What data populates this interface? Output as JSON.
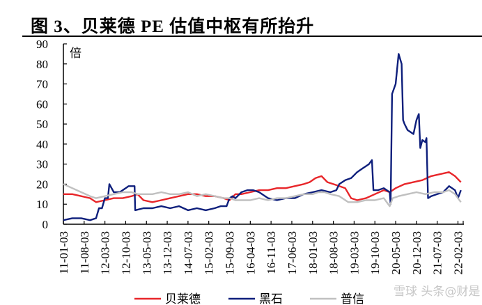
{
  "title": "图 3、贝莱德 PE 估值中枢有所抬升",
  "watermark": "雪球 头条@财是",
  "chart_data": {
    "type": "line",
    "title": "图 3、贝莱德 PE 估值中枢有所抬升",
    "ylabel": "倍",
    "xlabel": "",
    "ylim": [
      0,
      90
    ],
    "yticks": [
      0,
      10,
      20,
      30,
      40,
      50,
      60,
      70,
      80,
      90
    ],
    "x_unit": "months since 2011-01",
    "xlim": [
      0,
      135
    ],
    "xtick_labels": [
      "11-01-03",
      "11-08-03",
      "12-03-03",
      "12-10-03",
      "13-05-03",
      "13-12-03",
      "14-07-03",
      "15-02-03",
      "15-09-03",
      "16-04-03",
      "16-11-03",
      "17-06-03",
      "18-01-03",
      "18-08-03",
      "19-03-03",
      "19-10-03",
      "20-05-03",
      "20-12-03",
      "21-07-03",
      "22-02-03"
    ],
    "legend_position": "bottom",
    "series": [
      {
        "name": "贝莱德",
        "color": "#e8262a",
        "x": [
          0,
          3,
          6,
          9,
          11,
          14,
          17,
          20,
          23,
          25,
          27,
          30,
          33,
          36,
          39,
          42,
          45,
          48,
          51,
          54,
          56,
          58,
          60,
          63,
          66,
          69,
          72,
          75,
          78,
          81,
          83,
          85,
          87,
          89,
          91,
          93,
          95,
          97,
          99,
          102,
          105,
          108,
          110,
          112,
          115,
          118,
          121,
          124,
          127,
          130,
          132,
          134
        ],
        "y": [
          15,
          15,
          14,
          13,
          11,
          12,
          13,
          13,
          14,
          15,
          12,
          11,
          12,
          13,
          14,
          15,
          15,
          14,
          14,
          13,
          12,
          15,
          15,
          16,
          17,
          17,
          18,
          18,
          19,
          20,
          21,
          23,
          24,
          21,
          20,
          19,
          18,
          13,
          12,
          13,
          15,
          17,
          16,
          18,
          20,
          21,
          22,
          24,
          25,
          26,
          24,
          21
        ]
      },
      {
        "name": "黑石",
        "color": "#0e1f7c",
        "x": [
          0,
          3,
          6,
          9,
          11,
          12,
          13,
          14,
          15,
          15.5,
          17,
          19,
          21,
          22,
          23,
          24,
          24.2,
          27,
          30,
          33,
          36,
          39,
          42,
          45,
          48,
          51,
          53,
          55,
          56,
          57,
          58,
          60,
          62,
          64,
          66,
          69,
          72,
          75,
          78,
          81,
          84,
          87,
          90,
          92,
          93,
          95,
          97,
          99,
          101,
          103,
          104,
          104.5,
          106,
          108,
          110,
          110.3,
          110.8,
          112,
          113,
          114,
          114.5,
          115,
          116,
          118,
          119,
          119.8,
          120.3,
          121,
          122,
          122.4,
          122.9,
          124,
          126,
          128,
          130,
          132,
          133,
          134
        ],
        "y": [
          2,
          3,
          3,
          2,
          3,
          8,
          8,
          13,
          13,
          20,
          16,
          16,
          18,
          19,
          19,
          19,
          7,
          8,
          8,
          9,
          8,
          9,
          7,
          8,
          7,
          8,
          9,
          9,
          13,
          14,
          13,
          16,
          17,
          17,
          16,
          13,
          12,
          13,
          13,
          15,
          16,
          17,
          16,
          17,
          20,
          22,
          23,
          26,
          28,
          30,
          32,
          17,
          17,
          18,
          16,
          10,
          65,
          70,
          85,
          80,
          52,
          50,
          47,
          45,
          52,
          55,
          38,
          42,
          41,
          43,
          13,
          14,
          15,
          16,
          19,
          17,
          13,
          17
        ]
      },
      {
        "name": "普信",
        "color": "#c0c0c0",
        "x": [
          0,
          3,
          6,
          9,
          11,
          14,
          17,
          20,
          23,
          25,
          27,
          30,
          33,
          36,
          39,
          42,
          45,
          48,
          51,
          54,
          56,
          58,
          60,
          63,
          66,
          69,
          72,
          75,
          78,
          81,
          84,
          86,
          88,
          90,
          93,
          96,
          99,
          102,
          105,
          108,
          110,
          111,
          113,
          116,
          119,
          122,
          125,
          128,
          130,
          132,
          134
        ],
        "y": [
          20,
          18,
          16,
          14,
          13,
          14,
          15,
          16,
          16,
          15,
          15,
          15,
          16,
          15,
          15,
          16,
          14,
          15,
          14,
          13,
          13,
          12,
          12,
          12,
          13,
          12,
          13,
          13,
          14,
          15,
          15,
          16,
          16,
          15,
          14,
          11,
          11,
          12,
          12,
          13,
          9,
          13,
          14,
          15,
          16,
          15,
          16,
          16,
          17,
          15,
          11
        ]
      }
    ]
  }
}
